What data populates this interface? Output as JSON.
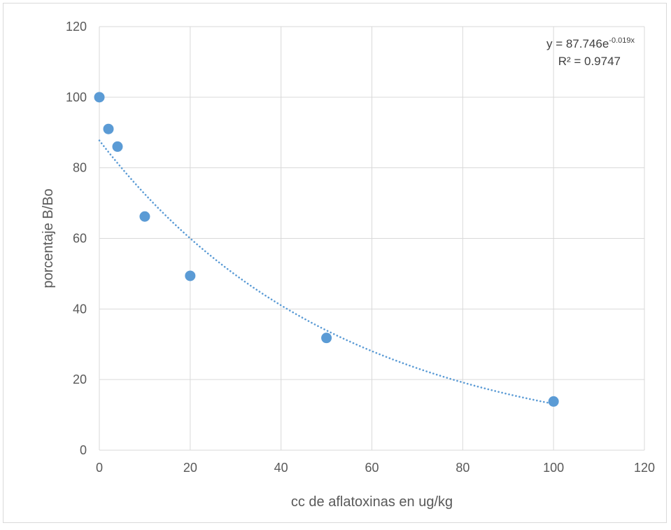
{
  "chart_data": {
    "type": "scatter",
    "title": "",
    "xlabel": "cc de aflatoxinas en ug/kg",
    "ylabel": "porcentaje B/Bo",
    "xlim": [
      0,
      120
    ],
    "ylim": [
      0,
      120
    ],
    "x_ticks": [
      0,
      20,
      40,
      60,
      80,
      100,
      120
    ],
    "y_ticks": [
      0,
      20,
      40,
      60,
      80,
      100,
      120
    ],
    "grid": true,
    "series": [
      {
        "x": [
          0,
          2,
          4,
          10,
          20,
          50,
          100
        ],
        "y": [
          100,
          91,
          86,
          66.2,
          49.4,
          31.8,
          13.8
        ],
        "color": "#5b9bd5"
      }
    ],
    "trendline": {
      "type": "exponential",
      "a": 87.746,
      "b": -0.019,
      "x_range": [
        0,
        100
      ],
      "style": "dotted",
      "color": "#5b9bd5"
    },
    "equation": {
      "line1_prefix": "y = 87.746e",
      "line1_exponent": "-0.019x",
      "line2": "R² = 0.9747"
    }
  },
  "colors": {
    "marker": "#5b9bd5",
    "grid": "#d9d9d9",
    "text": "#595959"
  }
}
